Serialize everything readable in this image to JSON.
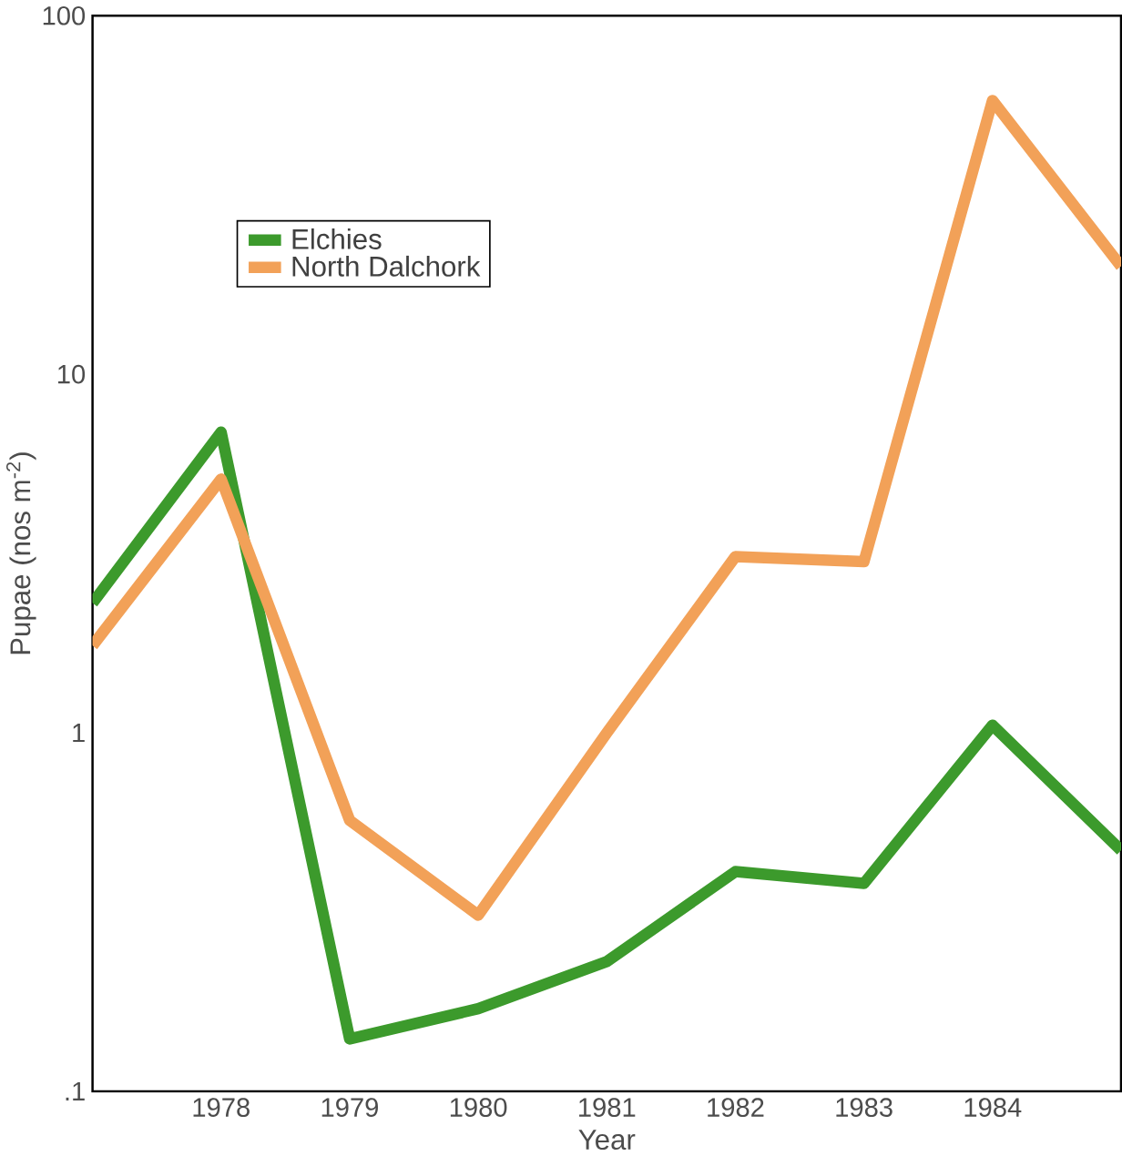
{
  "chart_data": {
    "type": "line",
    "xlabel": "Year",
    "ylabel": "Pupae (nos m$^{-2}$)",
    "x": [
      1977,
      1978,
      1979,
      1980,
      1981,
      1982,
      1983,
      1984,
      1985
    ],
    "series": [
      {
        "name": "Elchies",
        "color": "#3c9a2c",
        "values": [
          2.3,
          6.9,
          0.14,
          0.17,
          0.23,
          0.41,
          0.38,
          1.05,
          0.47
        ]
      },
      {
        "name": "North Dalchork",
        "color": "#f2a158",
        "values": [
          1.75,
          5.1,
          0.57,
          0.31,
          1.0,
          3.1,
          3.0,
          58,
          20
        ]
      }
    ],
    "xlim": [
      1977,
      1985
    ],
    "xticks": [
      1978,
      1979,
      1980,
      1981,
      1982,
      1983,
      1984
    ],
    "ylim": [
      0.1,
      100
    ],
    "yticks": [
      {
        "value": 0.1,
        "label": ".1"
      },
      1,
      10,
      100
    ],
    "log": "y",
    "legend": "top left",
    "marker": "none",
    "line_style": "solid"
  }
}
